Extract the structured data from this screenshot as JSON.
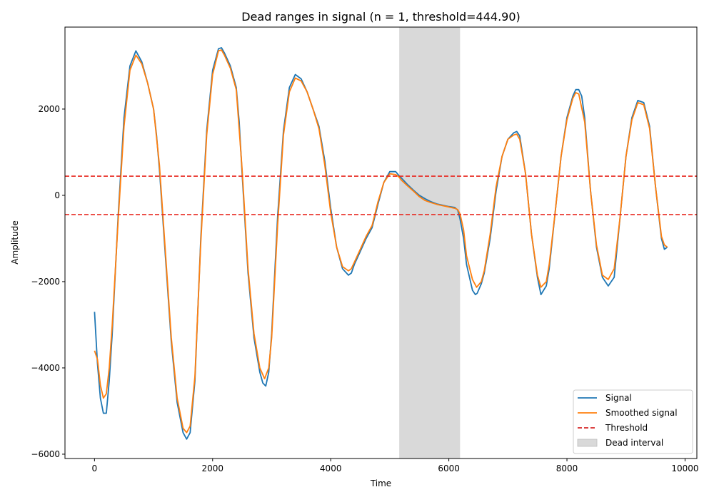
{
  "chart_data": {
    "type": "line",
    "title": "Dead ranges in signal (n = 1, threshold=444.90)",
    "xlabel": "Time",
    "ylabel": "Amplitude",
    "xlim": [
      -500,
      10200
    ],
    "ylim": [
      -6100,
      3900
    ],
    "xticks": [
      0,
      2000,
      4000,
      6000,
      8000,
      10000
    ],
    "xtick_labels": [
      "0",
      "2000",
      "4000",
      "6000",
      "8000",
      "10000"
    ],
    "yticks": [
      -6000,
      -4000,
      -2000,
      0,
      2000
    ],
    "ytick_labels": [
      "−6000",
      "−4000",
      "−2000",
      "0",
      "2000"
    ],
    "grid": false,
    "legend_position": "bottom-right",
    "threshold": 444.9,
    "dead_interval": [
      5160,
      6190
    ],
    "series": [
      {
        "name": "Signal",
        "color": "#1f77b4",
        "x": [
          0,
          50,
          100,
          150,
          200,
          250,
          300,
          400,
          500,
          600,
          700,
          800,
          900,
          1000,
          1050,
          1100,
          1200,
          1300,
          1400,
          1500,
          1560,
          1620,
          1700,
          1800,
          1900,
          2000,
          2100,
          2150,
          2200,
          2300,
          2400,
          2450,
          2500,
          2600,
          2700,
          2800,
          2850,
          2900,
          2950,
          3000,
          3100,
          3200,
          3300,
          3400,
          3500,
          3600,
          3700,
          3800,
          3900,
          4000,
          4100,
          4200,
          4300,
          4350,
          4400,
          4500,
          4600,
          4700,
          4800,
          4900,
          5000,
          5100,
          5160,
          5200,
          5300,
          5400,
          5500,
          5600,
          5700,
          5800,
          5900,
          6000,
          6100,
          6150,
          6190,
          6250,
          6300,
          6400,
          6450,
          6480,
          6550,
          6600,
          6700,
          6800,
          6900,
          7000,
          7100,
          7150,
          7200,
          7300,
          7400,
          7500,
          7560,
          7650,
          7700,
          7800,
          7900,
          8000,
          8100,
          8150,
          8200,
          8250,
          8300,
          8400,
          8500,
          8600,
          8700,
          8800,
          8900,
          9000,
          9100,
          9200,
          9300,
          9400,
          9500,
          9600,
          9650,
          9700
        ],
        "y": [
          -2700,
          -3900,
          -4700,
          -5050,
          -5050,
          -4300,
          -3200,
          -500,
          1800,
          3000,
          3350,
          3100,
          2600,
          2000,
          1400,
          600,
          -1400,
          -3400,
          -4800,
          -5500,
          -5650,
          -5500,
          -4300,
          -1000,
          1500,
          2900,
          3400,
          3420,
          3300,
          3000,
          2500,
          1700,
          500,
          -1800,
          -3300,
          -4100,
          -4350,
          -4420,
          -4100,
          -3200,
          -500,
          1500,
          2500,
          2800,
          2700,
          2400,
          2000,
          1600,
          800,
          -300,
          -1200,
          -1700,
          -1850,
          -1800,
          -1600,
          -1300,
          -1000,
          -750,
          -200,
          300,
          550,
          550,
          450,
          400,
          250,
          120,
          0,
          -80,
          -150,
          -200,
          -230,
          -260,
          -280,
          -340,
          -550,
          -1000,
          -1600,
          -2200,
          -2300,
          -2270,
          -2050,
          -1800,
          -1000,
          100,
          900,
          1300,
          1450,
          1480,
          1380,
          500,
          -900,
          -1900,
          -2300,
          -2100,
          -1700,
          -400,
          900,
          1800,
          2300,
          2450,
          2450,
          2300,
          1800,
          100,
          -1200,
          -1900,
          -2100,
          -1900,
          -500,
          900,
          1800,
          2200,
          2150,
          1600,
          200,
          -1000,
          -1250,
          -1200
        ]
      },
      {
        "name": "Smoothed signal",
        "color": "#ff7f0e",
        "x": [
          0,
          50,
          100,
          150,
          200,
          250,
          300,
          400,
          500,
          600,
          700,
          800,
          900,
          1000,
          1100,
          1200,
          1300,
          1400,
          1500,
          1560,
          1620,
          1700,
          1800,
          1900,
          2000,
          2100,
          2150,
          2200,
          2300,
          2400,
          2500,
          2600,
          2700,
          2800,
          2880,
          2950,
          3000,
          3100,
          3200,
          3300,
          3400,
          3500,
          3600,
          3700,
          3800,
          3900,
          4000,
          4100,
          4200,
          4300,
          4350,
          4400,
          4500,
          4600,
          4700,
          4800,
          4900,
          5000,
          5100,
          5160,
          5200,
          5300,
          5400,
          5500,
          5600,
          5700,
          5800,
          5900,
          6000,
          6100,
          6150,
          6190,
          6250,
          6300,
          6400,
          6470,
          6550,
          6600,
          6700,
          6800,
          6900,
          7000,
          7100,
          7150,
          7200,
          7300,
          7400,
          7500,
          7560,
          7650,
          7700,
          7800,
          7900,
          8000,
          8100,
          8150,
          8200,
          8300,
          8400,
          8500,
          8600,
          8700,
          8800,
          8900,
          9000,
          9100,
          9200,
          9300,
          9400,
          9500,
          9600,
          9650,
          9700
        ],
        "y": [
          -3600,
          -3800,
          -4400,
          -4700,
          -4600,
          -4000,
          -3000,
          -600,
          1600,
          2900,
          3250,
          3050,
          2600,
          2000,
          700,
          -1300,
          -3300,
          -4700,
          -5400,
          -5500,
          -5350,
          -4200,
          -1100,
          1400,
          2800,
          3350,
          3370,
          3250,
          2950,
          2450,
          600,
          -1700,
          -3200,
          -4000,
          -4250,
          -4000,
          -3300,
          -700,
          1400,
          2400,
          2720,
          2650,
          2400,
          2000,
          1550,
          700,
          -400,
          -1200,
          -1650,
          -1750,
          -1700,
          -1550,
          -1250,
          -950,
          -700,
          -150,
          300,
          500,
          480,
          420,
          350,
          220,
          100,
          -30,
          -120,
          -170,
          -210,
          -240,
          -270,
          -300,
          -330,
          -430,
          -800,
          -1400,
          -1950,
          -2130,
          -2000,
          -1750,
          -900,
          200,
          900,
          1300,
          1400,
          1420,
          1300,
          500,
          -900,
          -1850,
          -2130,
          -2000,
          -1600,
          -400,
          900,
          1750,
          2250,
          2380,
          2350,
          1700,
          100,
          -1150,
          -1850,
          -1950,
          -1700,
          -500,
          900,
          1750,
          2150,
          2100,
          1550,
          200,
          -950,
          -1150,
          -1200
        ]
      }
    ],
    "legend": [
      {
        "label": "Signal",
        "kind": "line",
        "color": "#1f77b4"
      },
      {
        "label": "Smoothed signal",
        "kind": "line",
        "color": "#ff7f0e"
      },
      {
        "label": "Threshold",
        "kind": "dashed",
        "color": "#d62728"
      },
      {
        "label": "Dead interval",
        "kind": "patch",
        "color": "#d9d9d9"
      }
    ]
  }
}
